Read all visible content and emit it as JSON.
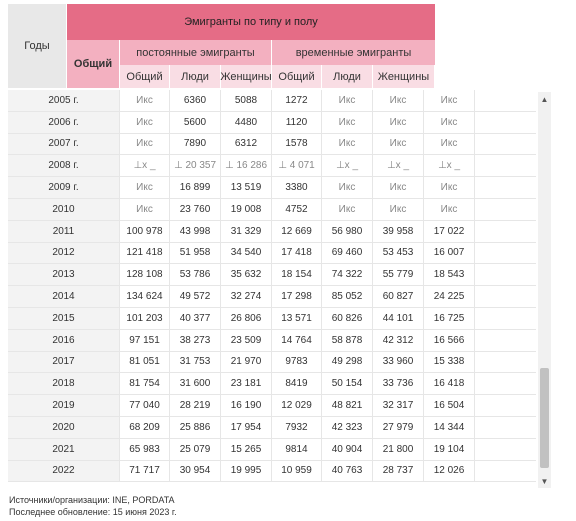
{
  "header": {
    "years": "Годы",
    "emigrants": "Эмигранты по типу и полу",
    "total": "Общий",
    "permanent": "постоянные эмигранты",
    "temporary": "временные эмигранты",
    "sub": [
      "Общий",
      "Люди",
      "Женщины",
      "Общий",
      "Люди",
      "Женщины"
    ]
  },
  "rows": [
    {
      "year": "2005 г.",
      "cells": [
        "Икс",
        "6360",
        "5088",
        "1272",
        "Икс",
        "Икс",
        "Икс"
      ]
    },
    {
      "year": "2006 г.",
      "cells": [
        "Икс",
        "5600",
        "4480",
        "1120",
        "Икс",
        "Икс",
        "Икс"
      ]
    },
    {
      "year": "2007 г.",
      "cells": [
        "Икс",
        "7890",
        "6312",
        "1578",
        "Икс",
        "Икс",
        "Икс"
      ]
    },
    {
      "year": "2008 г.",
      "cells": [
        "⊥x _",
        "⊥ 20 357",
        "⊥ 16 286",
        "⊥ 4 071",
        "⊥x _",
        "⊥x _",
        "⊥x _"
      ]
    },
    {
      "year": "2009 г.",
      "cells": [
        "Икс",
        "16 899",
        "13 519",
        "3380",
        "Икс",
        "Икс",
        "Икс"
      ]
    },
    {
      "year": "2010",
      "cells": [
        "Икс",
        "23 760",
        "19 008",
        "4752",
        "Икс",
        "Икс",
        "Икс"
      ]
    },
    {
      "year": "2011",
      "cells": [
        "100 978",
        "43 998",
        "31 329",
        "12 669",
        "56 980",
        "39 958",
        "17 022"
      ]
    },
    {
      "year": "2012",
      "cells": [
        "121 418",
        "51 958",
        "34 540",
        "17 418",
        "69 460",
        "53 453",
        "16 007"
      ]
    },
    {
      "year": "2013",
      "cells": [
        "128 108",
        "53 786",
        "35 632",
        "18 154",
        "74 322",
        "55 779",
        "18 543"
      ]
    },
    {
      "year": "2014",
      "cells": [
        "134 624",
        "49 572",
        "32 274",
        "17 298",
        "85 052",
        "60 827",
        "24 225"
      ]
    },
    {
      "year": "2015",
      "cells": [
        "101 203",
        "40 377",
        "26 806",
        "13 571",
        "60 826",
        "44 101",
        "16 725"
      ]
    },
    {
      "year": "2016",
      "cells": [
        "97 151",
        "38 273",
        "23 509",
        "14 764",
        "58 878",
        "42 312",
        "16 566"
      ]
    },
    {
      "year": "2017",
      "cells": [
        "81 051",
        "31 753",
        "21 970",
        "9783",
        "49 298",
        "33 960",
        "15 338"
      ]
    },
    {
      "year": "2018",
      "cells": [
        "81 754",
        "31 600",
        "23 181",
        "8419",
        "50 154",
        "33 736",
        "16 418"
      ]
    },
    {
      "year": "2019",
      "cells": [
        "77 040",
        "28 219",
        "16 190",
        "12 029",
        "48 821",
        "32 317",
        "16 504"
      ]
    },
    {
      "year": "2020",
      "cells": [
        "68 209",
        "25 886",
        "17 954",
        "7932",
        "42 323",
        "27 979",
        "14 344"
      ]
    },
    {
      "year": "2021",
      "cells": [
        "65 983",
        "25 079",
        "15 265",
        "9814",
        "40 904",
        "21 800",
        "19 104"
      ]
    },
    {
      "year": "2022",
      "cells": [
        "71 717",
        "30 954",
        "19 995",
        "10 959",
        "40 763",
        "28 737",
        "12 026"
      ]
    }
  ],
  "scrollbar": {
    "up_icon": "▲",
    "down_icon": "▼"
  },
  "footer": {
    "sources": "Источники/организации: INE, PORDATA",
    "updated": "Последнее обновление: 15 июня 2023 г."
  }
}
